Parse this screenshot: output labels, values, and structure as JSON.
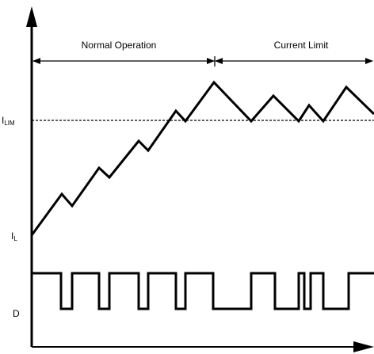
{
  "regions": {
    "normal_operation": "Normal Operation",
    "current_limit": "Current Limit"
  },
  "labels": {
    "i_lim_main": "I",
    "i_lim_sub": "LIM",
    "i_l_main": "I",
    "i_l_sub": "L",
    "duty": "D"
  },
  "colors": {
    "stroke": "#000000",
    "background": "#ffffff"
  }
}
